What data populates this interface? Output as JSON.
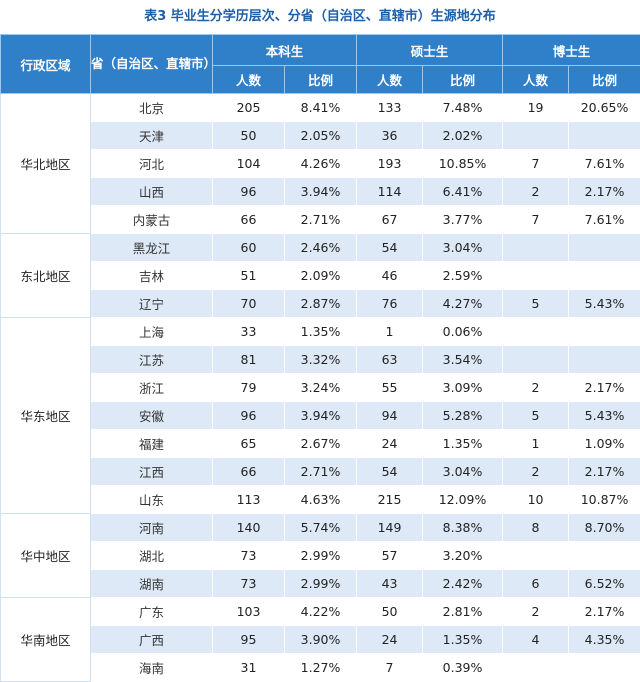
{
  "title": "表3 毕业生分学历层次、分省（自治区、直辖市）生源地分布",
  "headers": {
    "region": "行政区域",
    "province": "省（自治区、直辖市）",
    "bachelor": "本科生",
    "master": "硕士生",
    "doctor": "博士生",
    "count": "人数",
    "ratio": "比例"
  },
  "regions": [
    {
      "name": "华北地区",
      "rows": [
        {
          "province": "北京",
          "b_n": "205",
          "b_r": "8.41%",
          "m_n": "133",
          "m_r": "7.48%",
          "d_n": "19",
          "d_r": "20.65%"
        },
        {
          "province": "天津",
          "b_n": "50",
          "b_r": "2.05%",
          "m_n": "36",
          "m_r": "2.02%",
          "d_n": "",
          "d_r": ""
        },
        {
          "province": "河北",
          "b_n": "104",
          "b_r": "4.26%",
          "m_n": "193",
          "m_r": "10.85%",
          "d_n": "7",
          "d_r": "7.61%"
        },
        {
          "province": "山西",
          "b_n": "96",
          "b_r": "3.94%",
          "m_n": "114",
          "m_r": "6.41%",
          "d_n": "2",
          "d_r": "2.17%"
        },
        {
          "province": "内蒙古",
          "b_n": "66",
          "b_r": "2.71%",
          "m_n": "67",
          "m_r": "3.77%",
          "d_n": "7",
          "d_r": "7.61%"
        }
      ]
    },
    {
      "name": "东北地区",
      "rows": [
        {
          "province": "黑龙江",
          "b_n": "60",
          "b_r": "2.46%",
          "m_n": "54",
          "m_r": "3.04%",
          "d_n": "",
          "d_r": ""
        },
        {
          "province": "吉林",
          "b_n": "51",
          "b_r": "2.09%",
          "m_n": "46",
          "m_r": "2.59%",
          "d_n": "",
          "d_r": ""
        },
        {
          "province": "辽宁",
          "b_n": "70",
          "b_r": "2.87%",
          "m_n": "76",
          "m_r": "4.27%",
          "d_n": "5",
          "d_r": "5.43%"
        }
      ]
    },
    {
      "name": "华东地区",
      "rows": [
        {
          "province": "上海",
          "b_n": "33",
          "b_r": "1.35%",
          "m_n": "1",
          "m_r": "0.06%",
          "d_n": "",
          "d_r": ""
        },
        {
          "province": "江苏",
          "b_n": "81",
          "b_r": "3.32%",
          "m_n": "63",
          "m_r": "3.54%",
          "d_n": "",
          "d_r": ""
        },
        {
          "province": "浙江",
          "b_n": "79",
          "b_r": "3.24%",
          "m_n": "55",
          "m_r": "3.09%",
          "d_n": "2",
          "d_r": "2.17%"
        },
        {
          "province": "安徽",
          "b_n": "96",
          "b_r": "3.94%",
          "m_n": "94",
          "m_r": "5.28%",
          "d_n": "5",
          "d_r": "5.43%"
        },
        {
          "province": "福建",
          "b_n": "65",
          "b_r": "2.67%",
          "m_n": "24",
          "m_r": "1.35%",
          "d_n": "1",
          "d_r": "1.09%"
        },
        {
          "province": "江西",
          "b_n": "66",
          "b_r": "2.71%",
          "m_n": "54",
          "m_r": "3.04%",
          "d_n": "2",
          "d_r": "2.17%"
        },
        {
          "province": "山东",
          "b_n": "113",
          "b_r": "4.63%",
          "m_n": "215",
          "m_r": "12.09%",
          "d_n": "10",
          "d_r": "10.87%"
        }
      ]
    },
    {
      "name": "华中地区",
      "rows": [
        {
          "province": "河南",
          "b_n": "140",
          "b_r": "5.74%",
          "m_n": "149",
          "m_r": "8.38%",
          "d_n": "8",
          "d_r": "8.70%"
        },
        {
          "province": "湖北",
          "b_n": "73",
          "b_r": "2.99%",
          "m_n": "57",
          "m_r": "3.20%",
          "d_n": "",
          "d_r": ""
        },
        {
          "province": "湖南",
          "b_n": "73",
          "b_r": "2.99%",
          "m_n": "43",
          "m_r": "2.42%",
          "d_n": "6",
          "d_r": "6.52%"
        }
      ]
    },
    {
      "name": "华南地区",
      "rows": [
        {
          "province": "广东",
          "b_n": "103",
          "b_r": "4.22%",
          "m_n": "50",
          "m_r": "2.81%",
          "d_n": "2",
          "d_r": "2.17%"
        },
        {
          "province": "广西",
          "b_n": "95",
          "b_r": "3.90%",
          "m_n": "24",
          "m_r": "1.35%",
          "d_n": "4",
          "d_r": "4.35%"
        },
        {
          "province": "海南",
          "b_n": "31",
          "b_r": "1.27%",
          "m_n": "7",
          "m_r": "0.39%",
          "d_n": "",
          "d_r": ""
        }
      ]
    }
  ]
}
